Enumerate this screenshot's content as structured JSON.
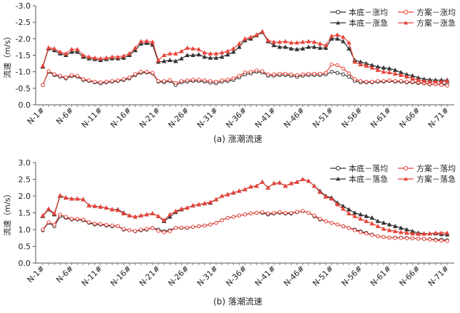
{
  "colors": {
    "base": "#333333",
    "plan": "#e8443a",
    "axis": "#555555",
    "text": "#222222"
  },
  "chart_data": [
    {
      "type": "line",
      "caption": "(a)  涨潮流速",
      "ylabel": "流速（m/s）",
      "ylim": [
        0,
        -3
      ],
      "yticks": [
        "0.0",
        "-0.5",
        "-1.0",
        "-1.5",
        "-2.0",
        "-2.5",
        "-3.0"
      ],
      "ytick_values": [
        0,
        -0.5,
        -1,
        -1.5,
        -2,
        -2.5,
        -3
      ],
      "x_count": 71,
      "x_ticks": [
        {
          "x": 1,
          "label": "N-1#"
        },
        {
          "x": 6,
          "label": "N-6#"
        },
        {
          "x": 11,
          "label": "N-11#"
        },
        {
          "x": 16,
          "label": "N-16#"
        },
        {
          "x": 21,
          "label": "N-21#"
        },
        {
          "x": 26,
          "label": "N-26#"
        },
        {
          "x": 31,
          "label": "N-31#"
        },
        {
          "x": 36,
          "label": "N-36#"
        },
        {
          "x": 41,
          "label": "N-41#"
        },
        {
          "x": 46,
          "label": "N-46#"
        },
        {
          "x": 51,
          "label": "N-51#"
        },
        {
          "x": 56,
          "label": "N-56#"
        },
        {
          "x": 61,
          "label": "N-61#"
        },
        {
          "x": 66,
          "label": "N-66#"
        },
        {
          "x": 71,
          "label": "N-71#"
        }
      ],
      "grid": false,
      "legend_position": "top-right",
      "series": [
        {
          "name": "本底－涨均",
          "color_key": "base",
          "marker": "circle",
          "values": [
            -0.6,
            -1.0,
            -0.9,
            -0.85,
            -0.8,
            -0.87,
            -0.85,
            -0.75,
            -0.72,
            -0.68,
            -0.65,
            -0.68,
            -0.7,
            -0.72,
            -0.75,
            -0.8,
            -0.9,
            -0.97,
            -0.98,
            -0.95,
            -0.7,
            -0.68,
            -0.72,
            -0.6,
            -0.68,
            -0.7,
            -0.72,
            -0.72,
            -0.7,
            -0.67,
            -0.65,
            -0.7,
            -0.72,
            -0.75,
            -0.83,
            -0.92,
            -0.95,
            -1.0,
            -0.98,
            -0.88,
            -0.88,
            -0.9,
            -0.9,
            -0.88,
            -0.85,
            -0.88,
            -0.9,
            -0.9,
            -0.9,
            -0.92,
            -1.0,
            -0.97,
            -0.92,
            -0.85,
            -0.72,
            -0.68,
            -0.68,
            -0.68,
            -0.7,
            -0.7,
            -0.72,
            -0.7,
            -0.7,
            -0.68,
            -0.68,
            -0.66,
            -0.65,
            -0.62,
            -0.62,
            -0.62,
            -0.62
          ]
        },
        {
          "name": "方案－涨均",
          "color_key": "plan",
          "marker": "circle",
          "values": [
            -0.6,
            -1.02,
            -0.93,
            -0.88,
            -0.83,
            -0.9,
            -0.88,
            -0.78,
            -0.74,
            -0.7,
            -0.68,
            -0.7,
            -0.72,
            -0.74,
            -0.78,
            -0.83,
            -0.93,
            -1.0,
            -1.0,
            -0.97,
            -0.72,
            -0.72,
            -0.75,
            -0.66,
            -0.72,
            -0.74,
            -0.76,
            -0.76,
            -0.74,
            -0.72,
            -0.7,
            -0.74,
            -0.76,
            -0.8,
            -0.88,
            -0.98,
            -1.0,
            -1.04,
            -1.02,
            -0.92,
            -0.92,
            -0.94,
            -0.94,
            -0.92,
            -0.9,
            -0.92,
            -0.94,
            -0.94,
            -0.94,
            -0.97,
            -1.22,
            -1.2,
            -1.1,
            -0.95,
            -0.78,
            -0.72,
            -0.7,
            -0.7,
            -0.72,
            -0.72,
            -0.74,
            -0.72,
            -0.72,
            -0.7,
            -0.7,
            -0.68,
            -0.66,
            -0.63,
            -0.62,
            -0.6,
            -0.58
          ]
        },
        {
          "name": "本底－涨急",
          "color_key": "base",
          "marker": "triangle",
          "values": [
            -1.15,
            -1.7,
            -1.65,
            -1.55,
            -1.5,
            -1.6,
            -1.6,
            -1.45,
            -1.4,
            -1.38,
            -1.35,
            -1.38,
            -1.4,
            -1.4,
            -1.42,
            -1.5,
            -1.65,
            -1.85,
            -1.87,
            -1.82,
            -1.3,
            -1.32,
            -1.35,
            -1.32,
            -1.4,
            -1.5,
            -1.5,
            -1.52,
            -1.45,
            -1.42,
            -1.42,
            -1.45,
            -1.52,
            -1.6,
            -1.75,
            -1.95,
            -2.0,
            -2.1,
            -2.2,
            -1.92,
            -1.8,
            -1.75,
            -1.75,
            -1.7,
            -1.68,
            -1.7,
            -1.75,
            -1.75,
            -1.72,
            -1.72,
            -2.0,
            -2.0,
            -1.92,
            -1.7,
            -1.35,
            -1.3,
            -1.25,
            -1.2,
            -1.15,
            -1.12,
            -1.1,
            -1.05,
            -0.98,
            -0.92,
            -0.88,
            -0.82,
            -0.78,
            -0.76,
            -0.75,
            -0.75,
            -0.75
          ]
        },
        {
          "name": "方案－涨急",
          "color_key": "plan",
          "marker": "triangle",
          "values": [
            -1.18,
            -1.73,
            -1.7,
            -1.6,
            -1.55,
            -1.68,
            -1.68,
            -1.5,
            -1.45,
            -1.42,
            -1.4,
            -1.42,
            -1.45,
            -1.45,
            -1.48,
            -1.55,
            -1.72,
            -1.92,
            -1.93,
            -1.9,
            -1.35,
            -1.5,
            -1.55,
            -1.55,
            -1.62,
            -1.72,
            -1.7,
            -1.68,
            -1.58,
            -1.55,
            -1.55,
            -1.58,
            -1.62,
            -1.7,
            -1.85,
            -2.0,
            -2.05,
            -2.12,
            -2.22,
            -1.95,
            -1.9,
            -1.9,
            -1.92,
            -1.88,
            -1.88,
            -1.9,
            -1.92,
            -1.9,
            -1.85,
            -1.8,
            -2.08,
            -2.12,
            -2.05,
            -1.88,
            -1.3,
            -1.22,
            -1.18,
            -1.12,
            -1.05,
            -1.0,
            -0.98,
            -0.94,
            -0.9,
            -0.85,
            -0.8,
            -0.75,
            -0.72,
            -0.7,
            -0.7,
            -0.7,
            -0.72
          ]
        }
      ]
    },
    {
      "type": "line",
      "caption": "(b)  落潮流速",
      "ylabel": "流速（m/s）",
      "ylim": [
        0,
        3
      ],
      "yticks": [
        "0.0",
        "0.5",
        "1.0",
        "1.5",
        "2.0",
        "2.5",
        "3.0"
      ],
      "ytick_values": [
        0,
        0.5,
        1,
        1.5,
        2,
        2.5,
        3
      ],
      "x_count": 71,
      "x_ticks": [
        {
          "x": 1,
          "label": "N-1#"
        },
        {
          "x": 6,
          "label": "N-6#"
        },
        {
          "x": 11,
          "label": "N-11#"
        },
        {
          "x": 16,
          "label": "N-16#"
        },
        {
          "x": 21,
          "label": "N-21#"
        },
        {
          "x": 26,
          "label": "N-26#"
        },
        {
          "x": 31,
          "label": "N-31#"
        },
        {
          "x": 36,
          "label": "N-36#"
        },
        {
          "x": 41,
          "label": "N-41#"
        },
        {
          "x": 46,
          "label": "N-46#"
        },
        {
          "x": 51,
          "label": "N-51#"
        },
        {
          "x": 56,
          "label": "N-56#"
        },
        {
          "x": 61,
          "label": "N-61#"
        },
        {
          "x": 66,
          "label": "N-66#"
        },
        {
          "x": 71,
          "label": "N-71#"
        }
      ],
      "grid": false,
      "legend_position": "top-right",
      "series": [
        {
          "name": "本底－落均",
          "color_key": "base",
          "marker": "circle",
          "values": [
            0.98,
            1.2,
            1.1,
            1.4,
            1.35,
            1.3,
            1.3,
            1.28,
            1.2,
            1.15,
            1.15,
            1.12,
            1.1,
            1.1,
            1.0,
            0.98,
            0.95,
            0.98,
            1.0,
            1.05,
            1.0,
            0.95,
            0.98,
            1.05,
            1.05,
            1.05,
            1.08,
            1.1,
            1.12,
            1.15,
            1.2,
            1.28,
            1.35,
            1.38,
            1.42,
            1.45,
            1.48,
            1.5,
            1.5,
            1.45,
            1.48,
            1.5,
            1.48,
            1.48,
            1.52,
            1.55,
            1.5,
            1.4,
            1.3,
            1.25,
            1.2,
            1.15,
            1.1,
            1.05,
            1.0,
            0.95,
            0.9,
            0.85,
            0.8,
            0.78,
            0.76,
            0.76,
            0.76,
            0.75,
            0.74,
            0.73,
            0.72,
            0.71,
            0.7,
            0.7,
            0.68
          ]
        },
        {
          "name": "方案－落均",
          "color_key": "plan",
          "marker": "circle",
          "values": [
            1.0,
            1.22,
            1.15,
            1.45,
            1.38,
            1.32,
            1.32,
            1.3,
            1.22,
            1.18,
            1.17,
            1.14,
            1.12,
            1.1,
            1.02,
            0.98,
            0.96,
            1.0,
            1.02,
            1.05,
            0.96,
            0.92,
            0.95,
            1.05,
            1.06,
            1.06,
            1.08,
            1.1,
            1.12,
            1.15,
            1.2,
            1.28,
            1.35,
            1.38,
            1.42,
            1.45,
            1.48,
            1.5,
            1.52,
            1.48,
            1.5,
            1.52,
            1.5,
            1.5,
            1.53,
            1.56,
            1.5,
            1.42,
            1.32,
            1.25,
            1.2,
            1.15,
            1.1,
            1.05,
            0.98,
            0.92,
            0.88,
            0.84,
            0.8,
            0.78,
            0.76,
            0.75,
            0.75,
            0.74,
            0.74,
            0.73,
            0.72,
            0.7,
            0.68,
            0.67,
            0.66
          ]
        },
        {
          "name": "本底－落急",
          "color_key": "base",
          "marker": "triangle",
          "values": [
            1.4,
            1.6,
            1.45,
            2.0,
            1.95,
            1.92,
            1.92,
            1.9,
            1.72,
            1.7,
            1.68,
            1.65,
            1.6,
            1.6,
            1.5,
            1.42,
            1.38,
            1.42,
            1.45,
            1.48,
            1.4,
            1.25,
            1.38,
            1.52,
            1.6,
            1.65,
            1.72,
            1.75,
            1.78,
            1.8,
            1.9,
            2.0,
            2.05,
            2.1,
            2.15,
            2.2,
            2.28,
            2.3,
            2.42,
            2.25,
            2.38,
            2.4,
            2.3,
            2.38,
            2.42,
            2.5,
            2.45,
            2.3,
            2.15,
            2.0,
            1.95,
            1.8,
            1.7,
            1.6,
            1.5,
            1.45,
            1.4,
            1.35,
            1.25,
            1.2,
            1.15,
            1.1,
            1.05,
            1.0,
            0.95,
            0.9,
            0.88,
            0.88,
            0.88,
            0.86,
            0.85
          ]
        },
        {
          "name": "方案－落急",
          "color_key": "plan",
          "marker": "triangle",
          "values": [
            1.42,
            1.62,
            1.48,
            2.02,
            1.95,
            1.92,
            1.92,
            1.9,
            1.72,
            1.7,
            1.68,
            1.65,
            1.6,
            1.58,
            1.48,
            1.42,
            1.38,
            1.42,
            1.45,
            1.48,
            1.4,
            1.28,
            1.45,
            1.55,
            1.62,
            1.65,
            1.72,
            1.75,
            1.78,
            1.82,
            1.9,
            2.0,
            2.05,
            2.1,
            2.15,
            2.2,
            2.28,
            2.3,
            2.42,
            2.25,
            2.38,
            2.4,
            2.3,
            2.38,
            2.42,
            2.5,
            2.45,
            2.3,
            2.12,
            1.98,
            1.92,
            1.75,
            1.62,
            1.48,
            1.4,
            1.32,
            1.25,
            1.18,
            1.1,
            1.02,
            0.98,
            0.95,
            0.92,
            0.9,
            0.88,
            0.87,
            0.87,
            0.88,
            0.9,
            0.9,
            0.9
          ]
        }
      ]
    }
  ]
}
